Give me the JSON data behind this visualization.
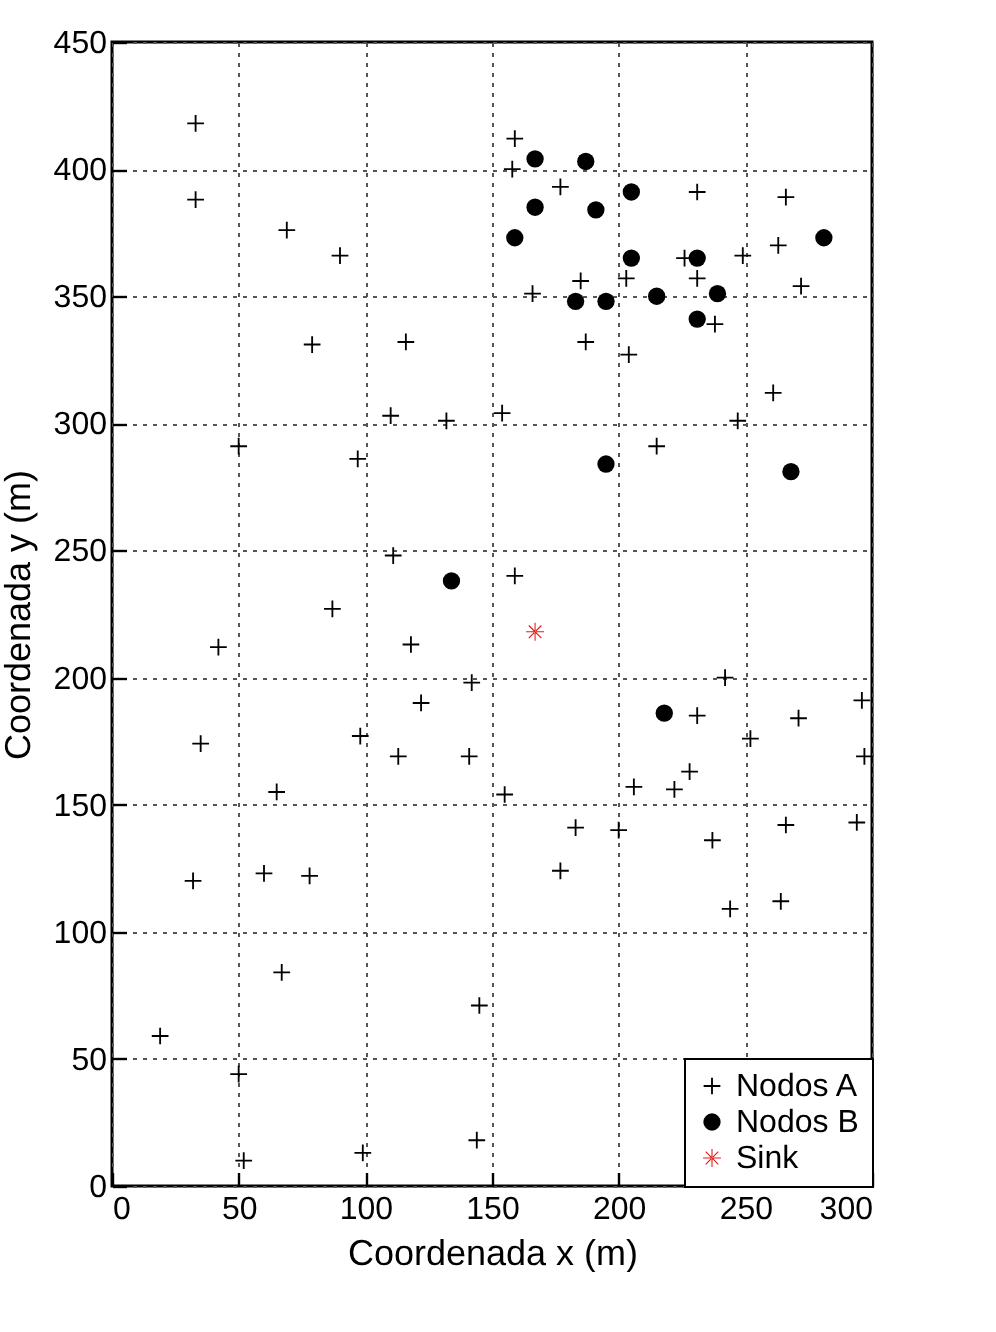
{
  "chart_data": {
    "type": "scatter",
    "xlabel": "Coordenada x (m)",
    "ylabel": "Coordenada y (m)",
    "xlim": [
      0,
      300
    ],
    "ylim": [
      0,
      450
    ],
    "xticks": [
      0,
      50,
      100,
      150,
      200,
      250,
      300
    ],
    "yticks": [
      0,
      50,
      100,
      150,
      200,
      250,
      300,
      350,
      400,
      450
    ],
    "grid": true,
    "legend": "bottom right",
    "series": [
      {
        "name": "Nodos A",
        "color": "#000000",
        "marker": "cross",
        "x": [
          33,
          33,
          69,
          90,
          79,
          116,
          110,
          132,
          154,
          50,
          97,
          111,
          87,
          42,
          118,
          159,
          158,
          177,
          231,
          266,
          263,
          249,
          226,
          185,
          203,
          231,
          272,
          166,
          238,
          187,
          204,
          261,
          247,
          215,
          159,
          142,
          122,
          35,
          98,
          113,
          141,
          65,
          32,
          60,
          78,
          67,
          145,
          19,
          50,
          52,
          99,
          144,
          242,
          231,
          271,
          296,
          297,
          252,
          228,
          222,
          206,
          155,
          183,
          200,
          266,
          294,
          237,
          177,
          244,
          264
        ],
        "values": [
          418,
          388,
          376,
          366,
          331,
          332,
          303,
          301,
          304,
          291,
          286,
          248,
          227,
          212,
          213,
          412,
          400,
          393,
          391,
          389,
          370,
          366,
          365,
          356,
          357,
          357,
          354,
          351,
          339,
          332,
          327,
          312,
          301,
          291,
          240,
          198,
          190,
          174,
          177,
          169,
          169,
          155,
          120,
          123,
          122,
          84,
          71,
          59,
          44,
          10,
          13,
          18,
          200,
          185,
          184,
          191,
          169,
          176,
          163,
          156,
          157,
          154,
          141,
          140,
          142,
          143,
          136,
          124,
          109,
          112
        ]
      },
      {
        "name": "Nodos B",
        "color": "#000000",
        "marker": "circle",
        "x": [
          134,
          167,
          187,
          205,
          167,
          191,
          159,
          281,
          205,
          231,
          183,
          195,
          215,
          239,
          231,
          195,
          268,
          218
        ],
        "values": [
          238,
          404,
          403,
          391,
          385,
          384,
          373,
          373,
          365,
          365,
          348,
          348,
          350,
          351,
          341,
          284,
          281,
          186
        ]
      },
      {
        "name": "Sink",
        "color": "#e41a1c",
        "marker": "star",
        "x": [
          167
        ],
        "values": [
          218
        ]
      }
    ]
  }
}
